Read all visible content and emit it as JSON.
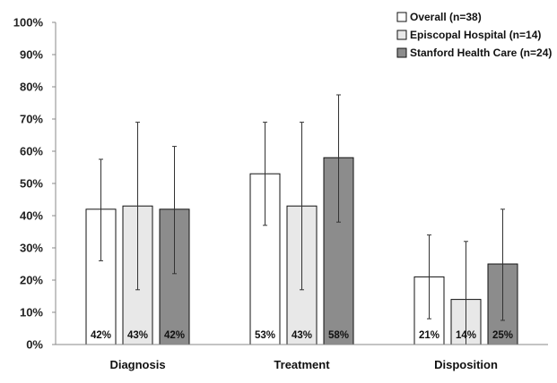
{
  "chart_data": {
    "type": "bar",
    "categories": [
      "Diagnosis",
      "Treatment",
      "Disposition"
    ],
    "ylim": [
      0,
      100
    ],
    "y_tick_step": 10,
    "y_tick_labels": [
      "0%",
      "10%",
      "20%",
      "30%",
      "40%",
      "50%",
      "60%",
      "70%",
      "80%",
      "90%",
      "100%"
    ],
    "legend_position": "top-right",
    "grid": false,
    "series": [
      {
        "name": "Overall (n=38)",
        "color": "#ffffff",
        "values": [
          42,
          53,
          21
        ],
        "labels": [
          "42%",
          "53%",
          "21%"
        ],
        "error_low": [
          26,
          37,
          8
        ],
        "error_high": [
          57.5,
          69,
          34
        ]
      },
      {
        "name": "Episcopal Hospital (n=14)",
        "color": "#e8e8e8",
        "values": [
          43,
          43,
          14
        ],
        "labels": [
          "43%",
          "43%",
          "14%"
        ],
        "error_low": [
          17,
          17,
          0
        ],
        "error_high": [
          69,
          69,
          32
        ]
      },
      {
        "name": "Stanford Health Care (n=24)",
        "color": "#8c8c8c",
        "values": [
          42,
          58,
          25
        ],
        "labels": [
          "42%",
          "58%",
          "25%"
        ],
        "error_low": [
          22,
          38,
          7.5
        ],
        "error_high": [
          61.5,
          77.5,
          42
        ]
      }
    ]
  }
}
